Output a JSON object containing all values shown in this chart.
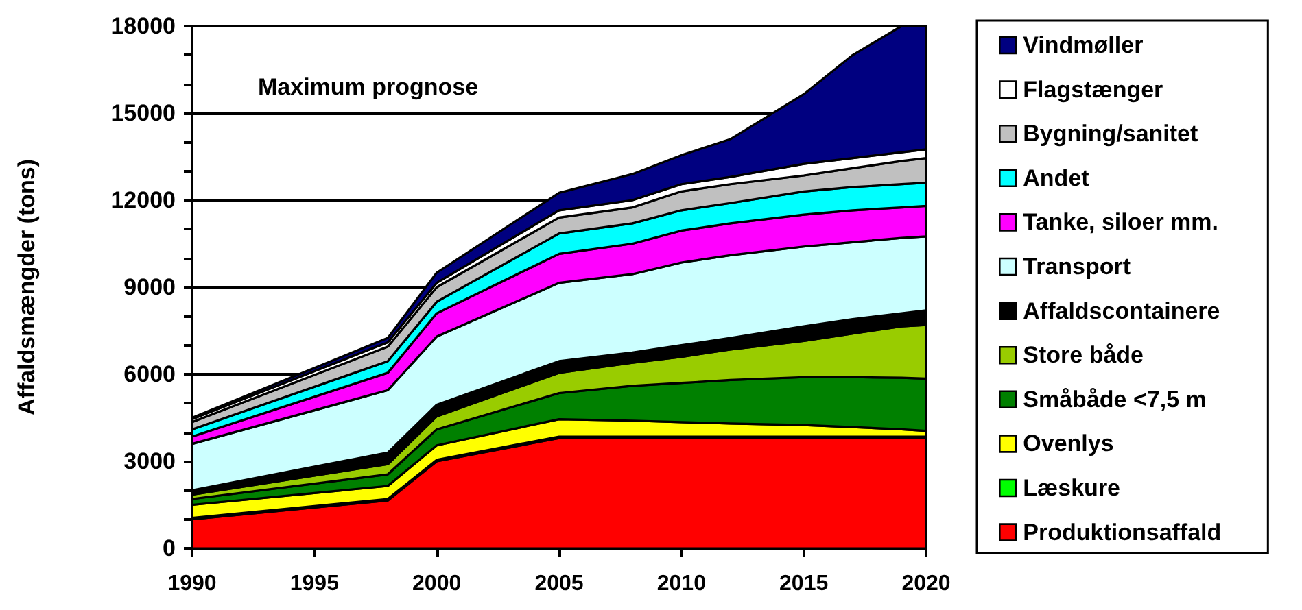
{
  "chart_data": {
    "type": "area",
    "stacked": true,
    "x": [
      1990,
      1998,
      2000,
      2005,
      2008,
      2010,
      2012,
      2015,
      2017,
      2019,
      2020
    ],
    "ylabel": "Affaldsmængder (tons)",
    "annotations": [
      "Maximum prognose"
    ],
    "xlim": [
      1990,
      2020
    ],
    "xticks": [
      1990,
      1995,
      2000,
      2005,
      2010,
      2015,
      2020
    ],
    "ylim": [
      0,
      18000
    ],
    "yticks": [
      0,
      {
        "value": 1000,
        "label": null
      },
      {
        "value": 2000,
        "label": null
      },
      3000,
      {
        "value": 4000,
        "label": null
      },
      {
        "value": 5000,
        "label": null
      },
      6000,
      {
        "value": 7000,
        "label": null
      },
      {
        "value": 8000,
        "label": null
      },
      9000,
      {
        "value": 10000,
        "label": null
      },
      {
        "value": 11000,
        "label": null
      },
      12000,
      {
        "value": 13000,
        "label": null
      },
      {
        "value": 14000,
        "label": null
      },
      15000,
      {
        "value": 16000,
        "label": null
      },
      {
        "value": 17000,
        "label": null
      },
      18000
    ],
    "grid": "y",
    "legend": "right",
    "series": [
      {
        "name": "Produktionsaffald",
        "color": "#ff0000",
        "values": [
          1000,
          1650,
          3000,
          3800,
          3800,
          3800,
          3800,
          3800,
          3800,
          3800,
          3800
        ]
      },
      {
        "name": "Læskure",
        "color": "#00ff00",
        "values": [
          50,
          50,
          50,
          50,
          50,
          50,
          50,
          50,
          50,
          50,
          50
        ]
      },
      {
        "name": "Ovenlys",
        "color": "#ffff00",
        "values": [
          450,
          450,
          500,
          600,
          550,
          500,
          450,
          400,
          330,
          250,
          200
        ]
      },
      {
        "name": "Småbåde <7,5 m",
        "color": "#008000",
        "values": [
          200,
          400,
          550,
          900,
          1200,
          1350,
          1500,
          1650,
          1720,
          1780,
          1800
        ]
      },
      {
        "name": "Store både",
        "color": "#99cc00",
        "values": [
          150,
          350,
          450,
          700,
          800,
          900,
          1050,
          1250,
          1500,
          1770,
          1850
        ]
      },
      {
        "name": "Affaldscontainere",
        "color": "#000000",
        "values": [
          150,
          400,
          400,
          400,
          350,
          400,
          400,
          500,
          500,
          450,
          500
        ]
      },
      {
        "name": "Transport",
        "color": "#ccffff",
        "values": [
          1600,
          2150,
          2350,
          2700,
          2700,
          2850,
          2850,
          2750,
          2650,
          2600,
          2550
        ]
      },
      {
        "name": "Tanke, siloer mm.",
        "color": "#ff00ff",
        "values": [
          250,
          600,
          800,
          1000,
          1050,
          1100,
          1100,
          1100,
          1100,
          1050,
          1050
        ]
      },
      {
        "name": "Andet",
        "color": "#00ffff",
        "values": [
          250,
          400,
          400,
          700,
          700,
          700,
          700,
          800,
          800,
          800,
          800
        ]
      },
      {
        "name": "Bygning/sanitet",
        "color": "#c0c0c0",
        "values": [
          250,
          500,
          500,
          550,
          550,
          650,
          650,
          550,
          650,
          800,
          850
        ]
      },
      {
        "name": "Flagstænger",
        "color": "#ffffff",
        "values": [
          100,
          150,
          150,
          250,
          250,
          250,
          250,
          400,
          350,
          300,
          300
        ]
      },
      {
        "name": "Vindmøller",
        "color": "#000080",
        "values": [
          50,
          150,
          350,
          600,
          900,
          1000,
          1300,
          2400,
          3550,
          4350,
          4250
        ]
      }
    ]
  }
}
